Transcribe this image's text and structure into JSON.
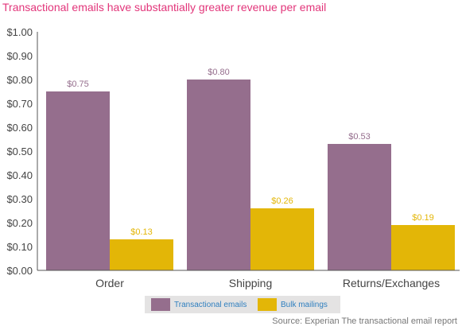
{
  "chart_data": {
    "type": "bar",
    "title": "Transactional emails have substantially greater revenue per email",
    "categories": [
      "Order",
      "Shipping",
      "Returns/Exchanges"
    ],
    "series": [
      {
        "name": "Transactional emails",
        "color": "#956e8d",
        "values": [
          0.75,
          0.8,
          0.53
        ],
        "labels": [
          "$0.75",
          "$0.80",
          "$0.53"
        ]
      },
      {
        "name": "Bulk mailings",
        "color": "#e3b607",
        "values": [
          0.13,
          0.26,
          0.19
        ],
        "labels": [
          "$0.13",
          "$0.26",
          "$0.19"
        ]
      }
    ],
    "ylim": [
      0,
      1.0
    ],
    "yticks": [
      0,
      0.1,
      0.2,
      0.3,
      0.4,
      0.5,
      0.6,
      0.7,
      0.8,
      0.9,
      1.0
    ],
    "ytick_labels": [
      "$0.00",
      "$0.10",
      "$0.20",
      "$0.30",
      "$0.40",
      "$0.50",
      "$0.60",
      "$0.70",
      "$0.80",
      "$0.90",
      "$1.00"
    ],
    "xlabel": "",
    "ylabel": "",
    "grid": false,
    "legend": "bottom-center",
    "source": "Source: Experian The transactional email report"
  }
}
